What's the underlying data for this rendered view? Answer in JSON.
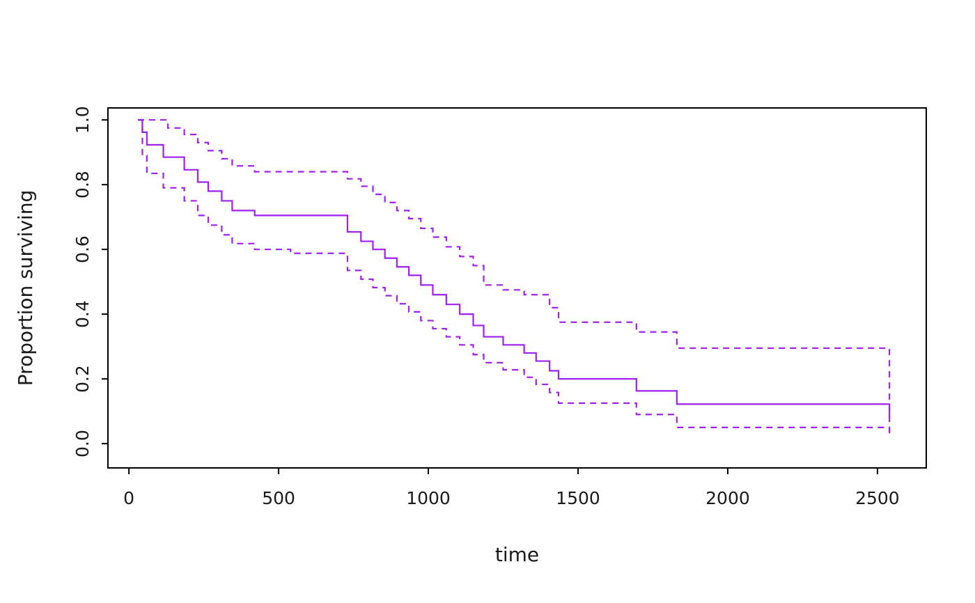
{
  "figure": {
    "background": "#ffffff",
    "frame_color": "#000000",
    "text_color": "#1a1a1a"
  },
  "chart_data": {
    "type": "line",
    "chart_kind": "kaplan-meier-step-plot",
    "title": "",
    "xlabel": "time",
    "ylabel": "Proportion surviving",
    "x_ticks": [
      0,
      500,
      1000,
      1500,
      2000,
      2500
    ],
    "y_ticks": [
      0.0,
      0.2,
      0.4,
      0.6,
      0.8,
      1.0
    ],
    "y_tick_decimals": 1,
    "xlim": [
      -70,
      2663
    ],
    "ylim": [
      -0.075,
      1.037
    ],
    "grid": false,
    "legend": "none",
    "line_color": "#A020F0",
    "series": [
      {
        "name": "survival-estimate",
        "style": "solid",
        "step": true,
        "points": [
          [
            30,
            1.0
          ],
          [
            45,
            0.962
          ],
          [
            60,
            0.923
          ],
          [
            115,
            0.885
          ],
          [
            185,
            0.846
          ],
          [
            230,
            0.808
          ],
          [
            265,
            0.78
          ],
          [
            310,
            0.75
          ],
          [
            345,
            0.72
          ],
          [
            420,
            0.705
          ],
          [
            730,
            0.654
          ],
          [
            775,
            0.625
          ],
          [
            815,
            0.6
          ],
          [
            855,
            0.573
          ],
          [
            895,
            0.546
          ],
          [
            935,
            0.52
          ],
          [
            975,
            0.49
          ],
          [
            1015,
            0.46
          ],
          [
            1060,
            0.43
          ],
          [
            1105,
            0.4
          ],
          [
            1150,
            0.365
          ],
          [
            1185,
            0.33
          ],
          [
            1250,
            0.305
          ],
          [
            1320,
            0.28
          ],
          [
            1360,
            0.255
          ],
          [
            1405,
            0.225
          ],
          [
            1435,
            0.2
          ],
          [
            1695,
            0.163
          ],
          [
            1830,
            0.122
          ],
          [
            2540,
            0.08
          ]
        ]
      },
      {
        "name": "upper-confidence-band",
        "style": "dashed",
        "step": true,
        "points": [
          [
            30,
            1.0
          ],
          [
            115,
            1.0
          ],
          [
            130,
            0.975
          ],
          [
            185,
            0.955
          ],
          [
            230,
            0.93
          ],
          [
            265,
            0.905
          ],
          [
            310,
            0.88
          ],
          [
            345,
            0.858
          ],
          [
            420,
            0.84
          ],
          [
            730,
            0.818
          ],
          [
            775,
            0.795
          ],
          [
            815,
            0.77
          ],
          [
            855,
            0.745
          ],
          [
            895,
            0.72
          ],
          [
            935,
            0.695
          ],
          [
            975,
            0.665
          ],
          [
            1015,
            0.638
          ],
          [
            1060,
            0.608
          ],
          [
            1105,
            0.578
          ],
          [
            1150,
            0.55
          ],
          [
            1185,
            0.49
          ],
          [
            1250,
            0.475
          ],
          [
            1320,
            0.46
          ],
          [
            1405,
            0.42
          ],
          [
            1435,
            0.375
          ],
          [
            1695,
            0.345
          ],
          [
            1830,
            0.295
          ],
          [
            2540,
            0.03
          ]
        ]
      },
      {
        "name": "lower-confidence-band",
        "style": "dashed",
        "step": true,
        "points": [
          [
            30,
            1.0
          ],
          [
            45,
            0.89
          ],
          [
            60,
            0.835
          ],
          [
            115,
            0.79
          ],
          [
            185,
            0.75
          ],
          [
            230,
            0.705
          ],
          [
            265,
            0.675
          ],
          [
            310,
            0.645
          ],
          [
            345,
            0.618
          ],
          [
            420,
            0.6
          ],
          [
            540,
            0.588
          ],
          [
            730,
            0.535
          ],
          [
            775,
            0.508
          ],
          [
            815,
            0.482
          ],
          [
            855,
            0.457
          ],
          [
            895,
            0.432
          ],
          [
            935,
            0.407
          ],
          [
            975,
            0.38
          ],
          [
            1015,
            0.355
          ],
          [
            1060,
            0.33
          ],
          [
            1105,
            0.305
          ],
          [
            1150,
            0.275
          ],
          [
            1185,
            0.25
          ],
          [
            1250,
            0.228
          ],
          [
            1320,
            0.205
          ],
          [
            1360,
            0.183
          ],
          [
            1405,
            0.158
          ],
          [
            1435,
            0.125
          ],
          [
            1695,
            0.09
          ],
          [
            1830,
            0.05
          ],
          [
            2540,
            0.03
          ]
        ]
      }
    ]
  }
}
